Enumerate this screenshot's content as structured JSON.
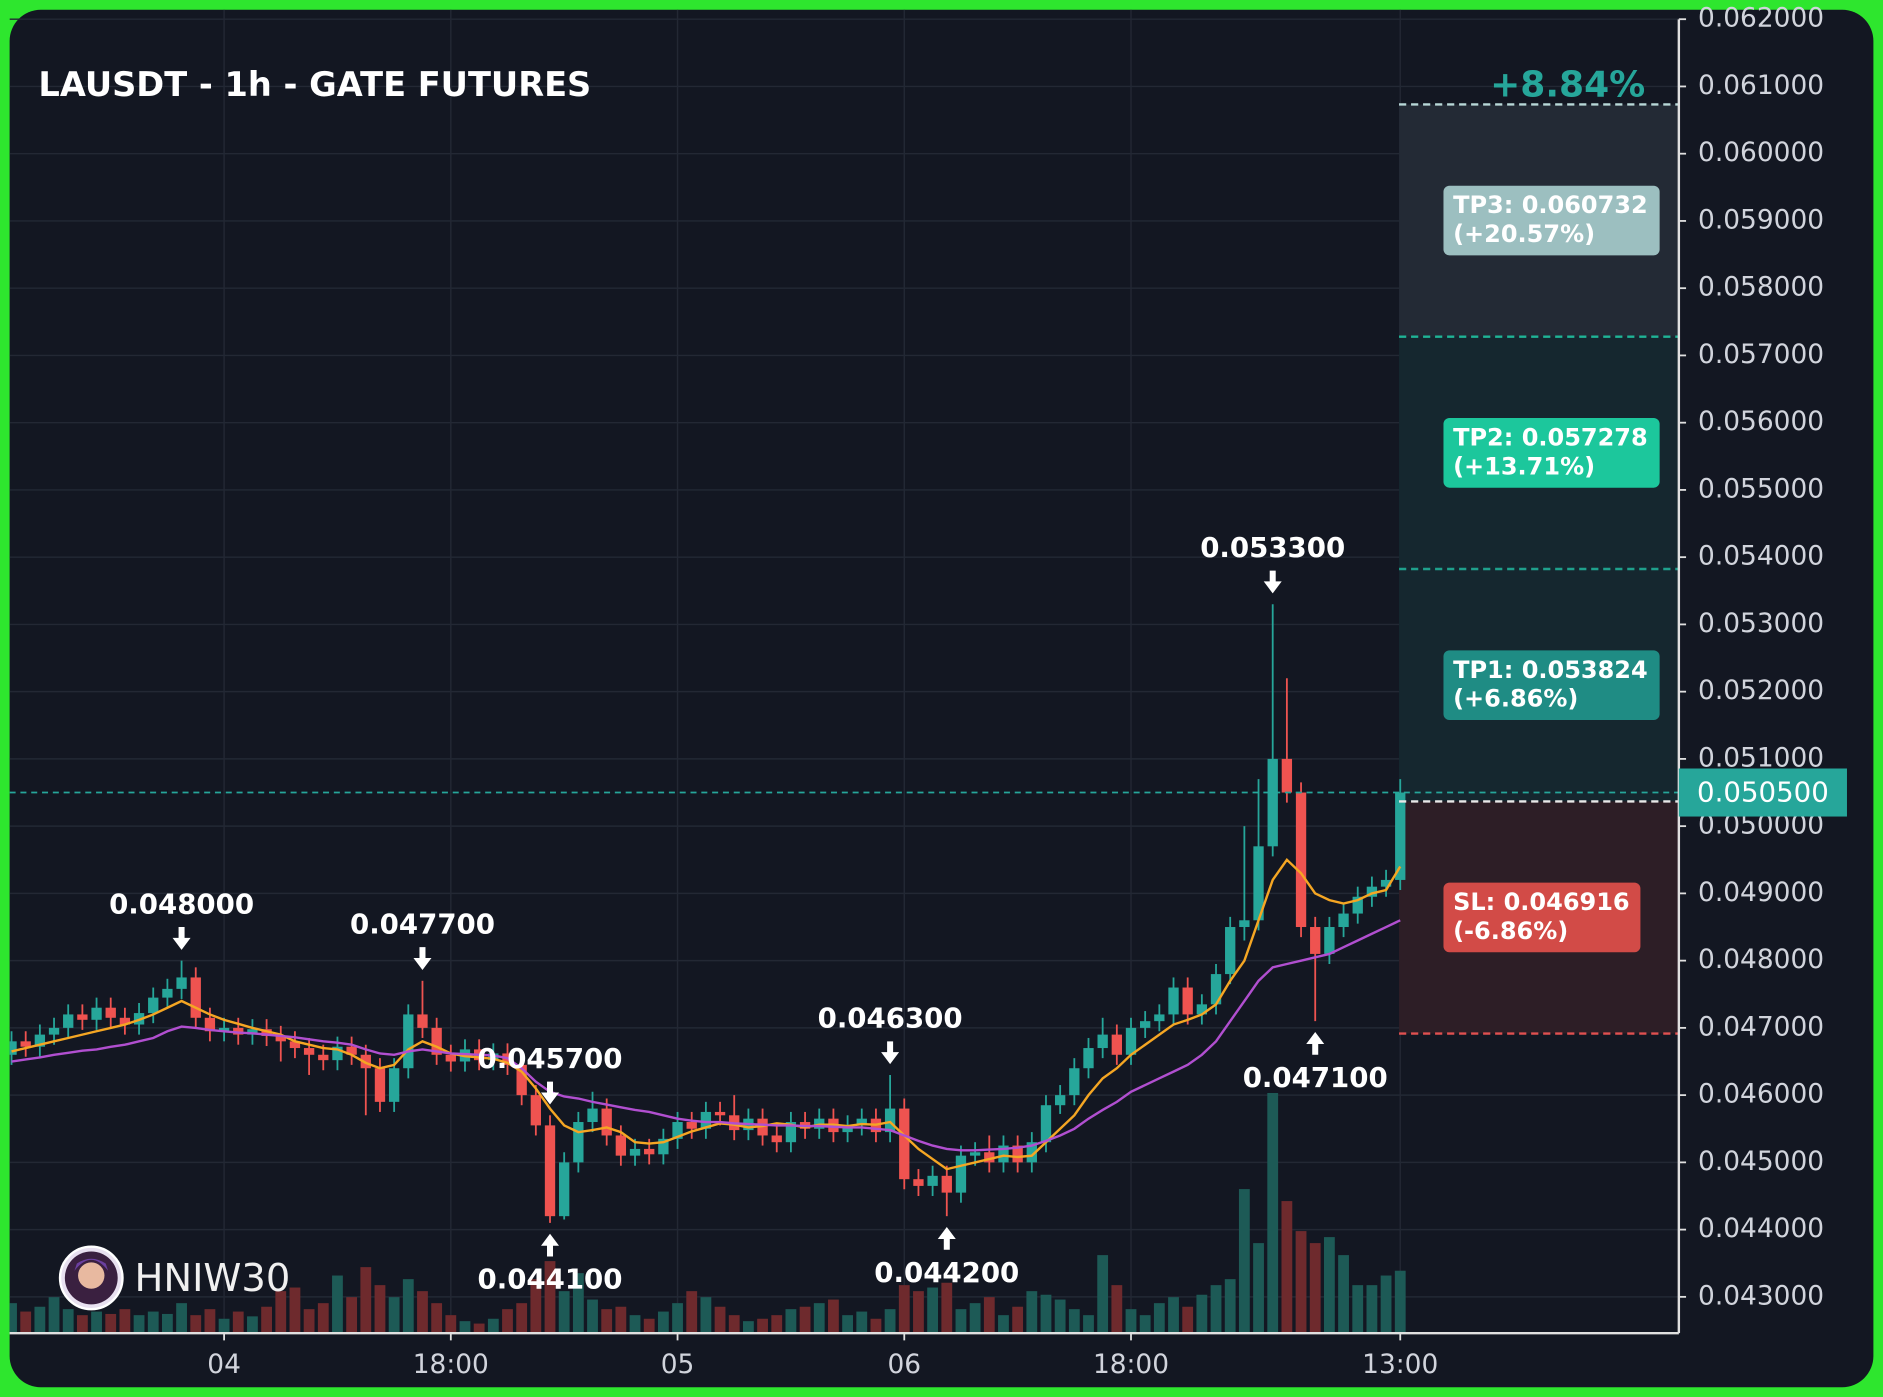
{
  "chart_data": {
    "type": "candlestick",
    "title": "LAUSDT - 1h - GATE FUTURES",
    "change_label": "+8.84%",
    "watermark": "HNIW30",
    "up_color": "#26a69a",
    "down_color": "#ef5350",
    "volume_up_color": "#1d5a56",
    "volume_down_color": "#6e2a2d",
    "grid": true,
    "ylim": [
      0.04246,
      0.06214
    ],
    "yticks": [
      {
        "value": 0.043,
        "label": "0.043000"
      },
      {
        "value": 0.044,
        "label": "0.044000"
      },
      {
        "value": 0.045,
        "label": "0.045000"
      },
      {
        "value": 0.046,
        "label": "0.046000"
      },
      {
        "value": 0.047,
        "label": "0.047000"
      },
      {
        "value": 0.048,
        "label": "0.048000"
      },
      {
        "value": 0.049,
        "label": "0.049000"
      },
      {
        "value": 0.05,
        "label": "0.050000"
      },
      {
        "value": 0.051,
        "label": "0.051000"
      },
      {
        "value": 0.052,
        "label": "0.052000"
      },
      {
        "value": 0.053,
        "label": "0.053000"
      },
      {
        "value": 0.054,
        "label": "0.054000"
      },
      {
        "value": 0.055,
        "label": "0.055000"
      },
      {
        "value": 0.056,
        "label": "0.056000"
      },
      {
        "value": 0.057,
        "label": "0.057000"
      },
      {
        "value": 0.058,
        "label": "0.058000"
      },
      {
        "value": 0.059,
        "label": "0.059000"
      },
      {
        "value": 0.06,
        "label": "0.060000"
      },
      {
        "value": 0.061,
        "label": "0.061000"
      },
      {
        "value": 0.062,
        "label": "0.062000"
      }
    ],
    "categories": [
      null,
      null,
      null,
      null,
      null,
      null,
      null,
      null,
      null,
      null,
      null,
      null,
      null,
      null,
      null,
      "04",
      null,
      null,
      null,
      null,
      null,
      null,
      null,
      null,
      null,
      null,
      null,
      null,
      null,
      null,
      null,
      "18:00",
      null,
      null,
      null,
      null,
      null,
      null,
      null,
      null,
      null,
      null,
      null,
      null,
      null,
      null,
      null,
      "05",
      null,
      null,
      null,
      null,
      null,
      null,
      null,
      null,
      null,
      null,
      null,
      null,
      null,
      null,
      null,
      "06",
      null,
      null,
      null,
      null,
      null,
      null,
      null,
      null,
      null,
      null,
      null,
      null,
      null,
      null,
      null,
      "18:00",
      null,
      null,
      null,
      null,
      null,
      null,
      null,
      null,
      null,
      null,
      null,
      null,
      null,
      null,
      null,
      null,
      null,
      null,
      "13:00"
    ],
    "open": [
      0.0466,
      0.0468,
      0.04672,
      0.0469,
      0.047,
      0.0472,
      0.04712,
      0.0473,
      0.04715,
      0.04705,
      0.04722,
      0.04745,
      0.04758,
      0.04775,
      0.04715,
      0.04695,
      0.047,
      0.0469,
      0.04698,
      0.04688,
      0.0468,
      0.0467,
      0.0466,
      0.04652,
      0.04672,
      0.0466,
      0.0464,
      0.0459,
      0.0464,
      0.0472,
      0.047,
      0.0466,
      0.0465,
      0.04668,
      0.04652,
      0.04662,
      0.04645,
      0.046,
      0.04555,
      0.0442,
      0.045,
      0.0456,
      0.0458,
      0.0454,
      0.0451,
      0.0452,
      0.04512,
      0.04535,
      0.0456,
      0.0455,
      0.04575,
      0.0457,
      0.04548,
      0.04565,
      0.0454,
      0.0453,
      0.0456,
      0.0455,
      0.04565,
      0.04545,
      0.04555,
      0.04565,
      0.04545,
      0.0458,
      0.04475,
      0.04465,
      0.0448,
      0.04455,
      0.0451,
      0.04515,
      0.045,
      0.04525,
      0.045,
      0.0453,
      0.04585,
      0.046,
      0.0464,
      0.0467,
      0.0469,
      0.0466,
      0.047,
      0.0471,
      0.0472,
      0.0476,
      0.0472,
      0.04735,
      0.0478,
      0.0485,
      0.0486,
      0.0497,
      0.051,
      0.0505,
      0.0485,
      0.0481,
      0.0485,
      0.0487,
      0.04895,
      0.0491,
      0.0492
    ],
    "high": [
      0.04695,
      0.04695,
      0.04705,
      0.04715,
      0.04735,
      0.04735,
      0.04745,
      0.04745,
      0.0473,
      0.04737,
      0.0476,
      0.04773,
      0.048,
      0.0479,
      0.0473,
      0.04715,
      0.04715,
      0.04713,
      0.04713,
      0.04703,
      0.04695,
      0.04685,
      0.04675,
      0.04687,
      0.04687,
      0.04675,
      0.04655,
      0.04655,
      0.04735,
      0.0477,
      0.04715,
      0.04675,
      0.04683,
      0.04683,
      0.04677,
      0.04677,
      0.0466,
      0.04615,
      0.0457,
      0.04515,
      0.04575,
      0.04605,
      0.04595,
      0.04555,
      0.04535,
      0.04535,
      0.0455,
      0.04575,
      0.04575,
      0.0459,
      0.0459,
      0.046,
      0.0458,
      0.0458,
      0.04555,
      0.04575,
      0.04575,
      0.0458,
      0.0458,
      0.0457,
      0.0458,
      0.0458,
      0.0463,
      0.04595,
      0.0449,
      0.04495,
      0.04495,
      0.04525,
      0.0453,
      0.0454,
      0.0454,
      0.0454,
      0.04545,
      0.046,
      0.04615,
      0.04655,
      0.04685,
      0.04715,
      0.04705,
      0.04715,
      0.04725,
      0.04735,
      0.04775,
      0.04775,
      0.0475,
      0.04795,
      0.04865,
      0.05,
      0.0507,
      0.0533,
      0.0522,
      0.05065,
      0.04865,
      0.04865,
      0.04885,
      0.0491,
      0.04925,
      0.04935,
      0.0507
    ],
    "low": [
      0.04645,
      0.04657,
      0.04657,
      0.04675,
      0.04685,
      0.04697,
      0.04697,
      0.047,
      0.0469,
      0.0469,
      0.04707,
      0.0473,
      0.04743,
      0.047,
      0.0468,
      0.0468,
      0.04675,
      0.04675,
      0.04673,
      0.0465,
      0.04655,
      0.0463,
      0.04637,
      0.04637,
      0.04645,
      0.0457,
      0.04575,
      0.04575,
      0.04625,
      0.04685,
      0.04645,
      0.04635,
      0.04635,
      0.04637,
      0.04637,
      0.0463,
      0.04585,
      0.0454,
      0.0441,
      0.04415,
      0.04485,
      0.04545,
      0.04525,
      0.04495,
      0.04495,
      0.04497,
      0.04497,
      0.0452,
      0.04535,
      0.04535,
      0.04555,
      0.04533,
      0.04533,
      0.04525,
      0.04515,
      0.04515,
      0.04535,
      0.04535,
      0.0453,
      0.0453,
      0.0454,
      0.0453,
      0.0453,
      0.0446,
      0.0445,
      0.0445,
      0.0442,
      0.0444,
      0.04495,
      0.04485,
      0.04485,
      0.04485,
      0.04485,
      0.04515,
      0.04572,
      0.04585,
      0.04625,
      0.04655,
      0.04645,
      0.04645,
      0.04685,
      0.04695,
      0.04705,
      0.04705,
      0.04705,
      0.0472,
      0.04765,
      0.0483,
      0.04845,
      0.04955,
      0.05035,
      0.04835,
      0.0471,
      0.04795,
      0.04835,
      0.04855,
      0.0488,
      0.04895,
      0.04905
    ],
    "close": [
      0.0468,
      0.04672,
      0.0469,
      0.047,
      0.0472,
      0.04712,
      0.0473,
      0.04715,
      0.04705,
      0.04722,
      0.04745,
      0.04758,
      0.04775,
      0.04715,
      0.04695,
      0.047,
      0.0469,
      0.04698,
      0.04688,
      0.0468,
      0.0467,
      0.0466,
      0.04652,
      0.04672,
      0.0466,
      0.0464,
      0.0459,
      0.0464,
      0.0472,
      0.047,
      0.0466,
      0.0465,
      0.04668,
      0.04652,
      0.04662,
      0.04645,
      0.046,
      0.04555,
      0.0442,
      0.045,
      0.0456,
      0.0458,
      0.0454,
      0.0451,
      0.0452,
      0.04512,
      0.04535,
      0.0456,
      0.0455,
      0.04575,
      0.0457,
      0.04548,
      0.04565,
      0.0454,
      0.0453,
      0.0456,
      0.0455,
      0.04565,
      0.04545,
      0.04555,
      0.04565,
      0.04545,
      0.0458,
      0.04475,
      0.04465,
      0.0448,
      0.04455,
      0.0451,
      0.04515,
      0.045,
      0.04525,
      0.045,
      0.0453,
      0.04585,
      0.046,
      0.0464,
      0.0467,
      0.0469,
      0.0466,
      0.047,
      0.0471,
      0.0472,
      0.0476,
      0.0472,
      0.04735,
      0.0478,
      0.0485,
      0.0486,
      0.0497,
      0.051,
      0.0505,
      0.0485,
      0.0481,
      0.0485,
      0.0487,
      0.04895,
      0.0491,
      0.0492,
      0.0505
    ],
    "volume": [
      25,
      18,
      22,
      30,
      20,
      15,
      18,
      16,
      20,
      15,
      18,
      16,
      25,
      15,
      20,
      12,
      18,
      14,
      22,
      35,
      38,
      20,
      25,
      48,
      30,
      55,
      40,
      30,
      45,
      35,
      25,
      15,
      10,
      8,
      12,
      20,
      25,
      45,
      60,
      35,
      50,
      28,
      20,
      22,
      15,
      12,
      18,
      25,
      35,
      30,
      22,
      15,
      10,
      12,
      15,
      20,
      22,
      25,
      28,
      15,
      18,
      12,
      20,
      40,
      35,
      38,
      42,
      20,
      25,
      30,
      15,
      22,
      35,
      32,
      28,
      20,
      15,
      65,
      40,
      20,
      15,
      25,
      30,
      22,
      32,
      40,
      45,
      120,
      75,
      200,
      110,
      85,
      75,
      80,
      65,
      40,
      40,
      48,
      52
    ],
    "lines": [
      {
        "color": "#f5a623",
        "values": [
          0.04665,
          0.0467,
          0.04675,
          0.0468,
          0.04685,
          0.0469,
          0.04695,
          0.047,
          0.04705,
          0.04712,
          0.0472,
          0.0473,
          0.0474,
          0.0473,
          0.0472,
          0.04712,
          0.04706,
          0.047,
          0.04695,
          0.0469,
          0.0468,
          0.04675,
          0.0467,
          0.04668,
          0.0466,
          0.04648,
          0.0464,
          0.04645,
          0.04668,
          0.0468,
          0.04672,
          0.04662,
          0.04658,
          0.04656,
          0.04654,
          0.04648,
          0.04635,
          0.0461,
          0.0458,
          0.04555,
          0.04545,
          0.04548,
          0.04552,
          0.04545,
          0.0453,
          0.04528,
          0.0453,
          0.04538,
          0.04546,
          0.04552,
          0.04558,
          0.04556,
          0.04552,
          0.04554,
          0.04558,
          0.04556,
          0.04552,
          0.04556,
          0.04556,
          0.04554,
          0.04557,
          0.04556,
          0.0456,
          0.0454,
          0.0452,
          0.04505,
          0.0449,
          0.04495,
          0.045,
          0.04505,
          0.0451,
          0.04508,
          0.0451,
          0.0453,
          0.0455,
          0.0457,
          0.046,
          0.04625,
          0.0464,
          0.0466,
          0.04675,
          0.0469,
          0.04705,
          0.04712,
          0.0472,
          0.04735,
          0.0477,
          0.048,
          0.0486,
          0.0492,
          0.0495,
          0.0493,
          0.049,
          0.0489,
          0.04885,
          0.0489,
          0.049,
          0.04905,
          0.0494
        ]
      },
      {
        "color": "#b14fd0",
        "values": [
          0.0465,
          0.04653,
          0.04656,
          0.0466,
          0.04663,
          0.04666,
          0.04668,
          0.04672,
          0.04675,
          0.0468,
          0.04685,
          0.04695,
          0.04702,
          0.047,
          0.04697,
          0.04695,
          0.04693,
          0.04692,
          0.0469,
          0.04688,
          0.04686,
          0.04683,
          0.0468,
          0.04678,
          0.04675,
          0.04668,
          0.04662,
          0.0466,
          0.04665,
          0.04668,
          0.04665,
          0.04662,
          0.04661,
          0.0466,
          0.04659,
          0.04655,
          0.0464,
          0.0462,
          0.04605,
          0.04598,
          0.04595,
          0.0459,
          0.04586,
          0.04582,
          0.04578,
          0.04575,
          0.0457,
          0.04565,
          0.04562,
          0.0456,
          0.0456,
          0.04558,
          0.04557,
          0.04556,
          0.04555,
          0.04555,
          0.04554,
          0.04554,
          0.04553,
          0.04552,
          0.04552,
          0.0455,
          0.04548,
          0.0454,
          0.04532,
          0.04525,
          0.0452,
          0.04518,
          0.04518,
          0.04519,
          0.0452,
          0.04522,
          0.04525,
          0.04532,
          0.0454,
          0.0455,
          0.04565,
          0.04578,
          0.0459,
          0.04605,
          0.04615,
          0.04625,
          0.04635,
          0.04645,
          0.0466,
          0.0468,
          0.0471,
          0.0474,
          0.0477,
          0.0479,
          0.04795,
          0.048,
          0.04805,
          0.0481,
          0.0482,
          0.0483,
          0.0484,
          0.0485,
          0.0486
        ]
      }
    ],
    "annotations": [
      {
        "value": 0.048,
        "label": "0.048000"
      },
      {
        "value": 0.0457,
        "label": "0.045700"
      },
      {
        "value": 0.0477,
        "label": "0.047700"
      },
      {
        "value": 0.0441,
        "label": "0.044100"
      },
      {
        "value": 0.0463,
        "label": "0.046300"
      },
      {
        "value": 0.0442,
        "label": "0.044200"
      },
      {
        "value": 0.0533,
        "label": "0.053300"
      },
      {
        "value": 0.0471,
        "label": "0.047100"
      }
    ],
    "last_price": {
      "value": 0.0505,
      "label": "0.050500",
      "color": "#26a69a"
    },
    "entry": {
      "value": 0.050368,
      "color": "#e8e8e8"
    },
    "targets": [
      {
        "value": 0.060732,
        "label": "TP3: 0.060732",
        "pct": "(+20.57%)",
        "color": "#9cbfc0",
        "line_color": "#b8d8d8",
        "zone_color": "#232a35"
      },
      {
        "value": 0.057278,
        "label": "TP2: 0.057278",
        "pct": "(+13.71%)",
        "color": "#1cc79c",
        "line_color": "#1fb496",
        "zone_color": "#15272f"
      },
      {
        "value": 0.053824,
        "label": "TP1: 0.053824",
        "pct": "(+6.86%)",
        "color": "#1f8c84",
        "line_color": "#1fa08c",
        "zone_color": "#15272f"
      }
    ],
    "stop": {
      "value": 0.046916,
      "label": "SL: 0.046916",
      "pct": "(-6.86%)",
      "color": "#d24b47",
      "line_color": "#e05050",
      "zone_color": "#2d1e26"
    }
  }
}
